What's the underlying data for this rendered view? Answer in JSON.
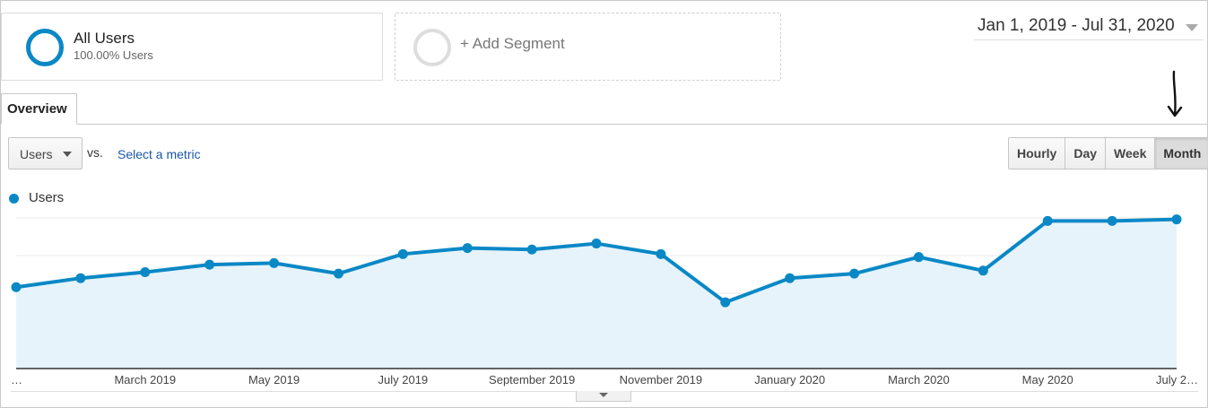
{
  "segments": {
    "primary": {
      "title": "All Users",
      "subtitle": "100.00% Users",
      "color": "#0a88c6"
    },
    "add": {
      "label": "+ Add Segment",
      "color": "#dddddd"
    }
  },
  "date_range": {
    "label": "Jan 1, 2019 - Jul 31, 2020"
  },
  "tabs": [
    {
      "label": "Overview",
      "active": true
    }
  ],
  "controls": {
    "metric": "Users",
    "vs": "vs.",
    "select_metric": "Select a metric",
    "granularity": [
      {
        "label": "Hourly",
        "active": false
      },
      {
        "label": "Day",
        "active": false
      },
      {
        "label": "Week",
        "active": false
      },
      {
        "label": "Month",
        "active": true
      }
    ]
  },
  "accent_color": "#0a88c6",
  "fill_color": "#e6f3fa",
  "chart_data": {
    "type": "area",
    "series": [
      {
        "name": "Users",
        "values": [
          54,
          60,
          64,
          69,
          70,
          63,
          76,
          80,
          79,
          83,
          76,
          44,
          60,
          63,
          74,
          65,
          98,
          98,
          99
        ]
      }
    ],
    "x_count": 19,
    "x_tick_labels": [
      {
        "i": 0,
        "label": "…"
      },
      {
        "i": 2,
        "label": "March 2019"
      },
      {
        "i": 4,
        "label": "May 2019"
      },
      {
        "i": 6,
        "label": "July 2019"
      },
      {
        "i": 8,
        "label": "September 2019"
      },
      {
        "i": 10,
        "label": "November 2019"
      },
      {
        "i": 12,
        "label": "January 2020"
      },
      {
        "i": 14,
        "label": "March 2020"
      },
      {
        "i": 16,
        "label": "May 2020"
      },
      {
        "i": 18,
        "label": "July 2…"
      }
    ],
    "ylim": [
      0,
      100
    ],
    "gridlines": 4,
    "legend": "top-left"
  }
}
